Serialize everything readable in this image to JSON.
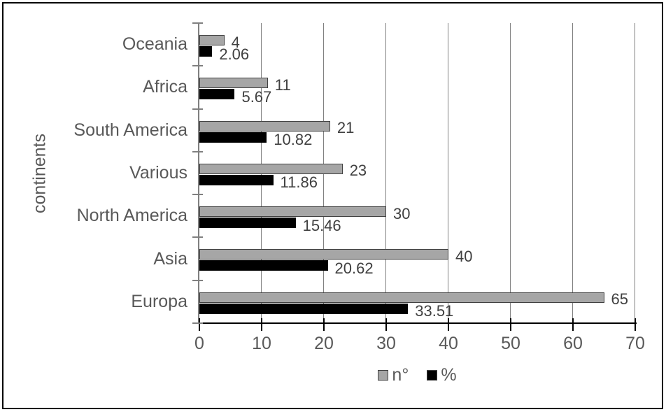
{
  "chart_data": {
    "type": "bar",
    "orientation": "horizontal",
    "title": "",
    "xlabel": "",
    "ylabel": "continents",
    "categories": [
      "Oceania",
      "Africa",
      "South America",
      "Various",
      "North America",
      "Asia",
      "Europa"
    ],
    "series": [
      {
        "name": "n°",
        "color": "#a6a6a6",
        "values": [
          4,
          11,
          21,
          23,
          30,
          40,
          65
        ],
        "labels": [
          "4",
          "11",
          "21",
          "23",
          "30",
          "40",
          "65"
        ]
      },
      {
        "name": "%",
        "color": "#000000",
        "values": [
          2.06,
          5.67,
          10.82,
          11.86,
          15.46,
          20.62,
          33.51
        ],
        "labels": [
          "2.06",
          "5.67",
          "10.82",
          "11.86",
          "15.46",
          "20.62",
          "33.51"
        ]
      }
    ],
    "xlim": [
      0,
      70
    ],
    "xticks": [
      0,
      10,
      20,
      30,
      40,
      50,
      60,
      70
    ],
    "grid": true,
    "legend_position": "bottom",
    "colors": {
      "grid_color": "#808080",
      "y_axis_color": "#808080",
      "x_axis_color": "#000000",
      "axis_text_color": "#595959",
      "data_label_color": "#404040",
      "bar_border_color": "#404040",
      "frame_border_color": "#000000",
      "background": "#ffffff"
    }
  }
}
